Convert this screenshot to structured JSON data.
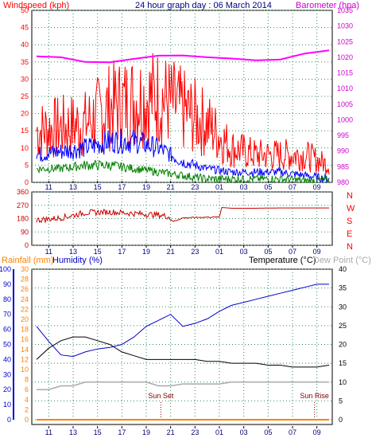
{
  "chart_data": [
    {
      "type": "line",
      "title": "24 hour graph day : 06 March 2014",
      "left_axis_title": "Windspeed (kph)",
      "right_axis_title": "Barometer (hpa)",
      "x_ticks": [
        "11",
        "13",
        "15",
        "17",
        "19",
        "21",
        "23",
        "01",
        "03",
        "05",
        "07",
        "09"
      ],
      "left_ylim": [
        0,
        50
      ],
      "left_ticks": [
        "0",
        "5",
        "10",
        "15",
        "20",
        "25",
        "30",
        "35",
        "40",
        "45",
        "50"
      ],
      "right_ylim": [
        980,
        1035
      ],
      "right_ticks": [
        "980",
        "985",
        "990",
        "995",
        "1000",
        "1005",
        "1010",
        "1015",
        "1020",
        "1025",
        "1030",
        "1035"
      ],
      "grid": true,
      "x_hours": [
        0,
        2,
        4,
        6,
        8,
        10,
        12,
        14,
        16,
        18,
        20,
        22,
        24
      ],
      "series": [
        {
          "key": "gust",
          "color": "#ff0000",
          "values": [
            15,
            16,
            17,
            22,
            24,
            25,
            21,
            17,
            10,
            8,
            8,
            8,
            5
          ]
        },
        {
          "key": "speed",
          "color": "#0000ff",
          "values": [
            8,
            9,
            10,
            12,
            12,
            10,
            6,
            4,
            3,
            3,
            3,
            2,
            1
          ]
        },
        {
          "key": "direction_avg",
          "color": "#008000",
          "values": [
            4,
            4,
            5,
            5,
            4,
            3,
            2,
            1,
            1,
            1,
            1,
            0.5,
            0.5
          ]
        },
        {
          "key": "barometer",
          "color": "#ff00ff",
          "values": [
            1020.3,
            1020.0,
            1018.5,
            1018.4,
            1019.5,
            1020.5,
            1020.6,
            1020.0,
            1019.6,
            1019.0,
            1019.3,
            1021.2,
            1022.2
          ]
        }
      ]
    },
    {
      "type": "line",
      "left_ticks": [
        "0",
        "90",
        "180",
        "270",
        "360"
      ],
      "left_ylim": [
        0,
        360
      ],
      "right_labels": [
        "N",
        "W",
        "S",
        "E",
        "N"
      ],
      "x_ticks": [
        "11",
        "13",
        "15",
        "17",
        "19",
        "21",
        "23",
        "01",
        "03",
        "05",
        "07",
        "09"
      ],
      "series": [
        {
          "key": "wind_direction",
          "color": "#cc0000",
          "x_hours": [
            0,
            2,
            4,
            6,
            8,
            10,
            10.8,
            11.2,
            12,
            14,
            15,
            15.2,
            16,
            18,
            20,
            22,
            24
          ],
          "values": [
            170,
            185,
            220,
            225,
            215,
            205,
            195,
            160,
            185,
            190,
            190,
            255,
            250,
            250,
            252,
            252,
            252
          ]
        }
      ]
    },
    {
      "type": "line",
      "rain_axis_title": "Rainfall (mm)",
      "humidity_axis_title": "Humidity (%)",
      "temp_axis_title": "Temperature (°C)",
      "dew_axis_title": "Dew Point (°C)",
      "humidity_ticks": [
        "0",
        "10",
        "20",
        "30",
        "40",
        "50",
        "60",
        "70",
        "80",
        "90",
        "100"
      ],
      "rain_ticks": [
        "0",
        "2",
        "4",
        "6",
        "8",
        "10",
        "12",
        "14",
        "16",
        "18",
        "20",
        "22",
        "24",
        "26",
        "28",
        "30"
      ],
      "temp_ticks": [
        "0",
        "5",
        "10",
        "15",
        "20",
        "25",
        "30",
        "35",
        "40"
      ],
      "temp_ylim": [
        0,
        40
      ],
      "x_ticks": [
        "11",
        "13",
        "15",
        "17",
        "19",
        "21",
        "23",
        "01",
        "03",
        "05",
        "07",
        "09"
      ],
      "annotations": [
        {
          "text": "Sun Set",
          "hour": 10.2
        },
        {
          "text": "Sun Rise",
          "hour": 22.8
        }
      ],
      "x_hours": [
        0,
        1,
        2,
        3,
        4,
        5,
        6,
        7,
        8,
        9,
        10,
        11,
        12,
        13,
        14,
        15,
        16,
        17,
        18,
        19,
        20,
        21,
        22,
        23,
        24
      ],
      "series": [
        {
          "key": "humidity",
          "color": "#0000cc",
          "values": [
            62,
            52,
            43,
            42,
            45,
            47,
            48,
            50,
            55,
            62,
            66,
            70,
            62,
            64,
            67,
            72,
            76,
            78,
            80,
            82,
            84,
            86,
            88,
            90,
            90
          ]
        },
        {
          "key": "temperature",
          "color": "#000000",
          "values": [
            16,
            19,
            21,
            22,
            22,
            21,
            20,
            18,
            17,
            16,
            16,
            16,
            16,
            16,
            15.5,
            15.5,
            15,
            15,
            15,
            14.5,
            14.5,
            14,
            14,
            14,
            14.5
          ]
        },
        {
          "key": "dew_point",
          "color": "#aaaaaa",
          "values": [
            8,
            8,
            9,
            9,
            10,
            10,
            10,
            10,
            10,
            10,
            9,
            9,
            9.5,
            9.5,
            9.5,
            9.5,
            10,
            10,
            10,
            10,
            10,
            10,
            10,
            10,
            10
          ]
        },
        {
          "key": "rainfall",
          "color": "#ff8000",
          "values": [
            0,
            0,
            0,
            0,
            0,
            0,
            0,
            0,
            0,
            0,
            0,
            0,
            0,
            0,
            0,
            0,
            0,
            0,
            0,
            0,
            0,
            0,
            0,
            0,
            0
          ]
        }
      ]
    }
  ]
}
